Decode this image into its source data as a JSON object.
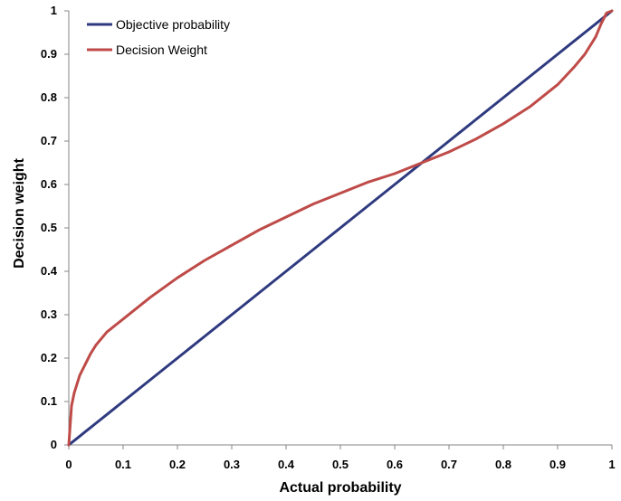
{
  "chart_data": {
    "type": "line",
    "title": "",
    "xlabel": "Actual probability",
    "ylabel": "Decision weight",
    "xlim": [
      0,
      1
    ],
    "ylim": [
      0,
      1
    ],
    "x_ticks": [
      "0",
      "0.1",
      "0.2",
      "0.3",
      "0.4",
      "0.5",
      "0.6",
      "0.7",
      "0.8",
      "0.9",
      "1"
    ],
    "y_ticks": [
      "0",
      "0.1",
      "0.2",
      "0.3",
      "0.4",
      "0.5",
      "0.6",
      "0.7",
      "0.8",
      "0.9",
      "1"
    ],
    "grid": false,
    "legend_position": "top-left",
    "x": [
      0,
      0.005,
      0.01,
      0.02,
      0.03,
      0.04,
      0.05,
      0.07,
      0.1,
      0.15,
      0.2,
      0.25,
      0.3,
      0.35,
      0.4,
      0.45,
      0.5,
      0.55,
      0.6,
      0.64,
      0.7,
      0.75,
      0.8,
      0.85,
      0.9,
      0.93,
      0.95,
      0.97,
      0.98,
      0.99,
      1.0
    ],
    "series": [
      {
        "name": "Objective probability",
        "color": "#2E3A7F",
        "values": [
          0,
          0.005,
          0.01,
          0.02,
          0.03,
          0.04,
          0.05,
          0.07,
          0.1,
          0.15,
          0.2,
          0.25,
          0.3,
          0.35,
          0.4,
          0.45,
          0.5,
          0.55,
          0.6,
          0.64,
          0.7,
          0.75,
          0.8,
          0.85,
          0.9,
          0.93,
          0.95,
          0.97,
          0.98,
          0.99,
          1.0
        ]
      },
      {
        "name": "Decision Weight",
        "color": "#BE4B48",
        "values": [
          0,
          0.09,
          0.12,
          0.16,
          0.185,
          0.21,
          0.23,
          0.26,
          0.29,
          0.34,
          0.385,
          0.425,
          0.46,
          0.495,
          0.525,
          0.555,
          0.58,
          0.605,
          0.625,
          0.645,
          0.675,
          0.705,
          0.74,
          0.78,
          0.83,
          0.87,
          0.9,
          0.94,
          0.97,
          0.995,
          1.0
        ]
      }
    ]
  }
}
